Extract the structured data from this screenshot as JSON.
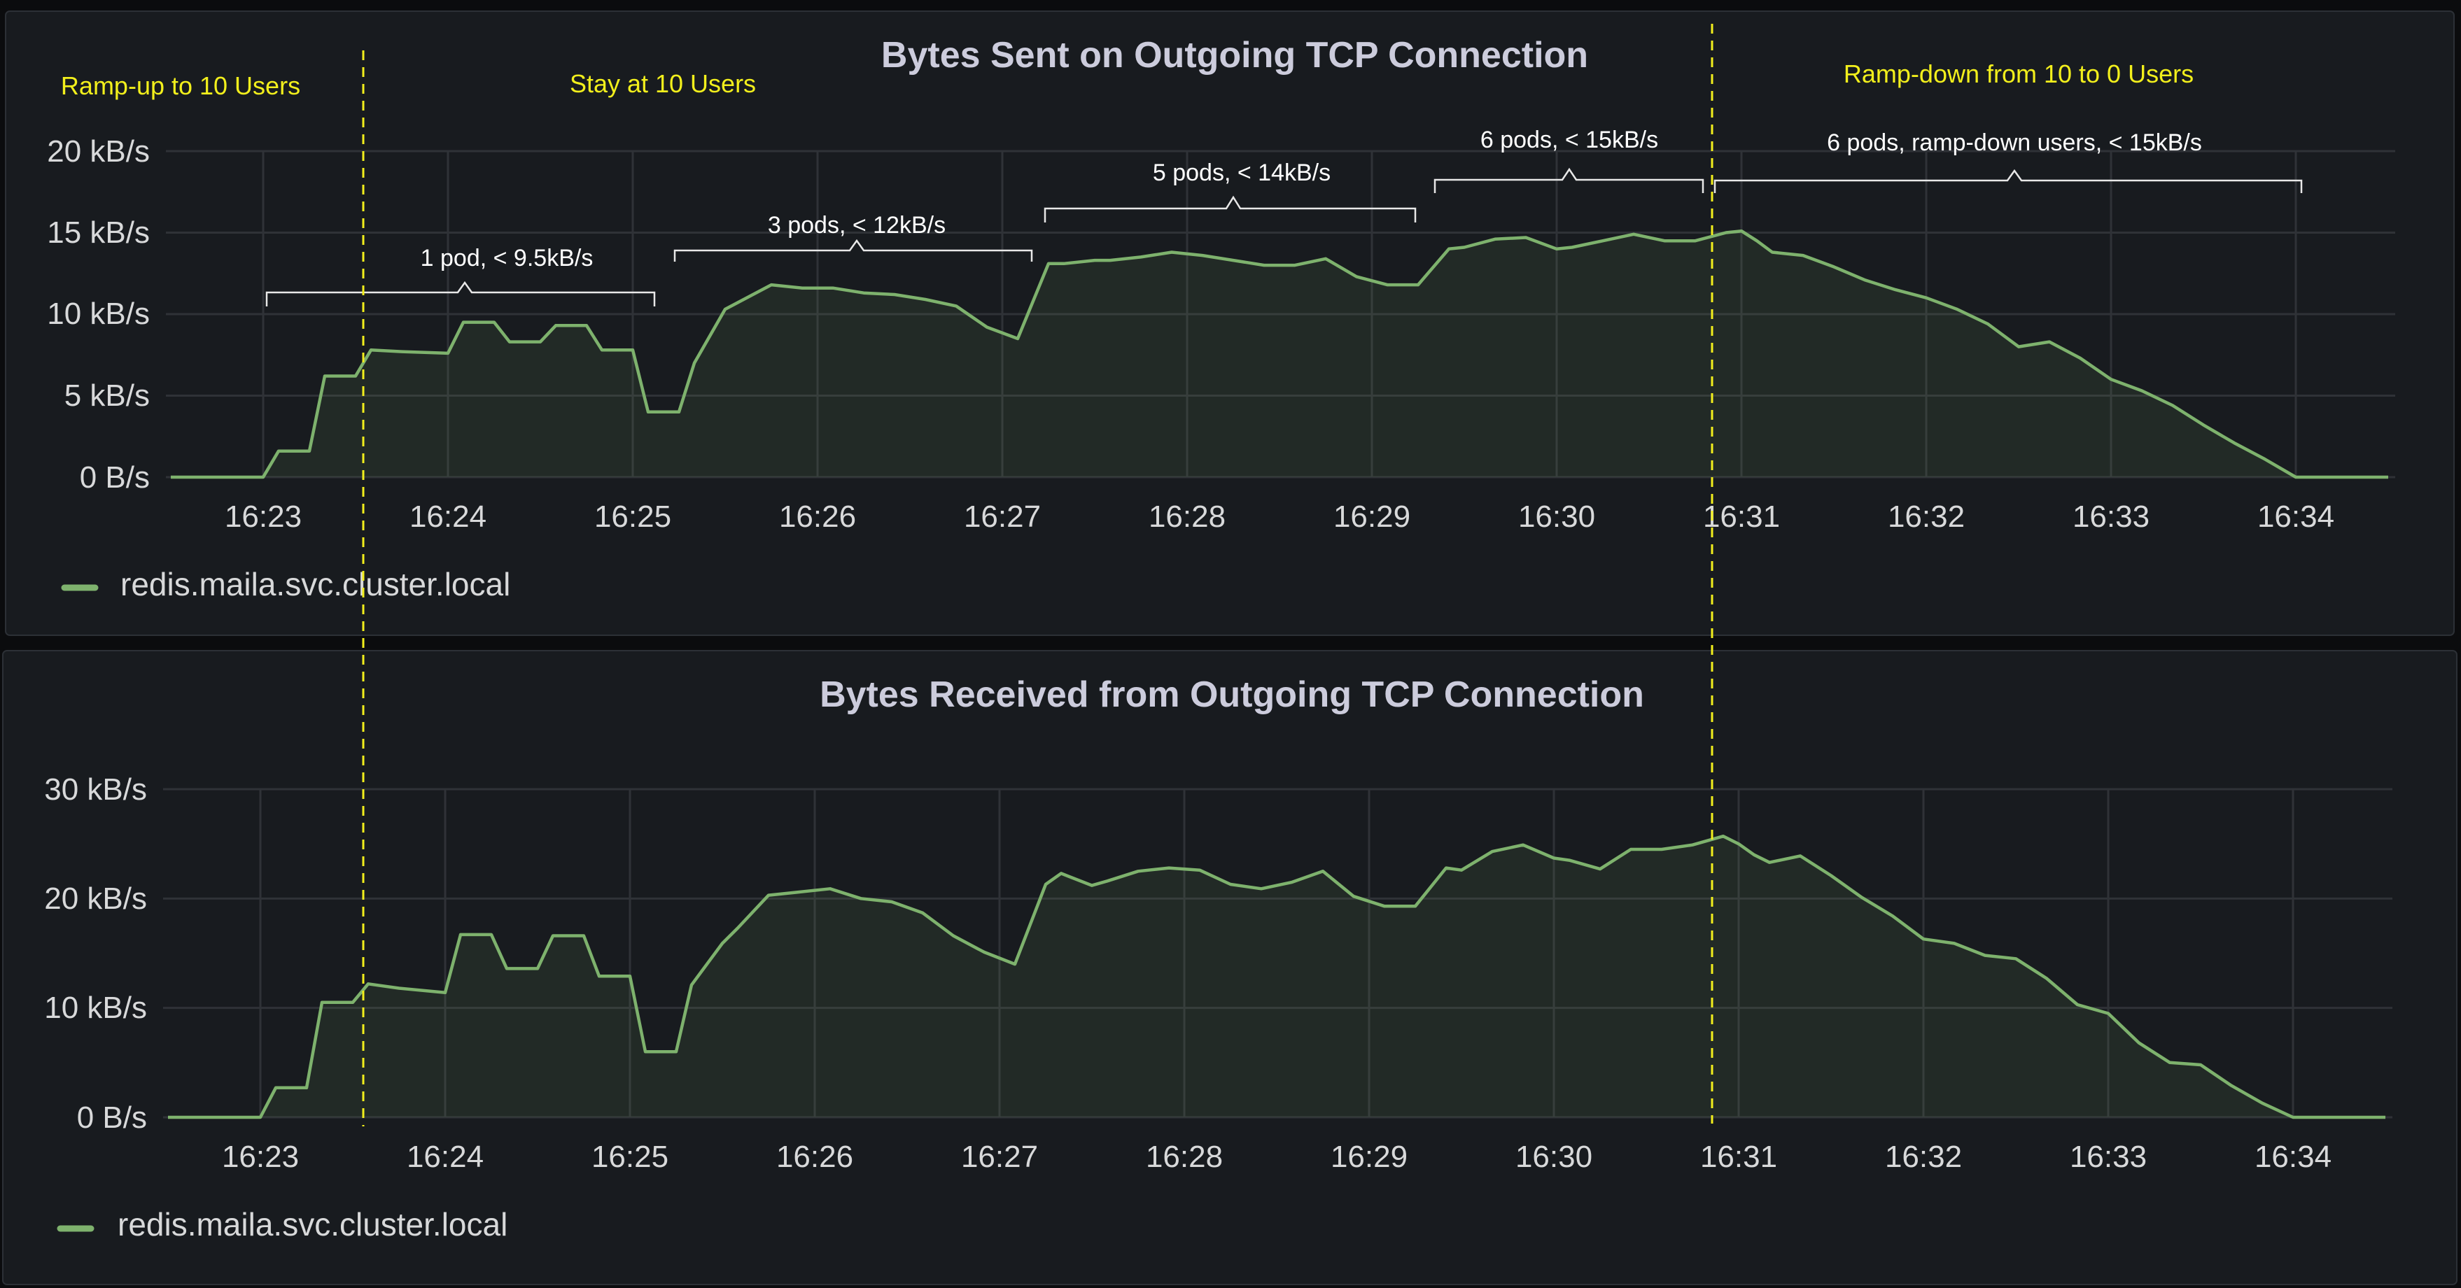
{
  "panels": [
    {
      "title": "Bytes Sent on Outgoing TCP Connection",
      "legend": "redis.maila.svc.cluster.local",
      "y_ticks": [
        "0 B/s",
        "5 kB/s",
        "10 kB/s",
        "15 kB/s",
        "20 kB/s"
      ]
    },
    {
      "title": "Bytes Received from Outgoing TCP Connection",
      "legend": "redis.maila.svc.cluster.local",
      "y_ticks": [
        "0 B/s",
        "10 kB/s",
        "20 kB/s",
        "30 kB/s"
      ]
    }
  ],
  "x_ticks": [
    "16:23",
    "16:24",
    "16:25",
    "16:26",
    "16:27",
    "16:28",
    "16:29",
    "16:30",
    "16:31",
    "16:32",
    "16:33",
    "16:34"
  ],
  "phases": [
    "Ramp-up to 10 Users",
    "Stay at 10 Users",
    "Ramp-down from 10 to 0 Users"
  ],
  "pod_annotations": [
    "1 pod, < 9.5kB/s",
    "3 pods, < 12kB/s",
    "5 pods, < 14kB/s",
    "6 pods, < 15kB/s",
    "6 pods, ramp-down users, < 15kB/s"
  ],
  "colors": {
    "series": "#7eb26d",
    "phase_marker": "#f2ef1c",
    "panel_bg": "#181b1f",
    "page_bg": "#0b0c0e"
  },
  "chart_data": [
    {
      "type": "area",
      "title": "Bytes Sent on Outgoing TCP Connection",
      "ylabel_unit": "kB/s",
      "ylim": [
        0,
        20
      ],
      "xlim": [
        "16:22:30",
        "16:34:30"
      ],
      "grid": true,
      "legend_position": "bottom-left",
      "series": [
        {
          "name": "redis.maila.svc.cluster.local",
          "x": [
            "16:22:30",
            "16:23:00",
            "16:23:05",
            "16:23:15",
            "16:23:20",
            "16:23:30",
            "16:23:35",
            "16:23:45",
            "16:24:00",
            "16:24:05",
            "16:24:15",
            "16:24:20",
            "16:24:30",
            "16:24:35",
            "16:24:45",
            "16:24:50",
            "16:25:00",
            "16:25:05",
            "16:25:15",
            "16:25:20",
            "16:25:30",
            "16:25:35",
            "16:25:45",
            "16:25:55",
            "16:26:05",
            "16:26:15",
            "16:26:25",
            "16:26:35",
            "16:26:45",
            "16:26:55",
            "16:27:05",
            "16:27:15",
            "16:27:20",
            "16:27:30",
            "16:27:35",
            "16:27:45",
            "16:27:55",
            "16:28:05",
            "16:28:15",
            "16:28:25",
            "16:28:35",
            "16:28:45",
            "16:28:55",
            "16:29:05",
            "16:29:15",
            "16:29:25",
            "16:29:30",
            "16:29:40",
            "16:29:50",
            "16:30:00",
            "16:30:05",
            "16:30:15",
            "16:30:25",
            "16:30:35",
            "16:30:45",
            "16:30:55",
            "16:31:00",
            "16:31:05",
            "16:31:10",
            "16:31:20",
            "16:31:30",
            "16:31:40",
            "16:31:50",
            "16:32:00",
            "16:32:10",
            "16:32:20",
            "16:32:30",
            "16:32:40",
            "16:32:50",
            "16:33:00",
            "16:33:10",
            "16:33:20",
            "16:33:30",
            "16:33:40",
            "16:33:50",
            "16:34:00",
            "16:34:30"
          ],
          "values": [
            0,
            0,
            1.6,
            1.6,
            6.2,
            6.2,
            7.8,
            7.7,
            7.6,
            9.5,
            9.5,
            8.3,
            8.3,
            9.3,
            9.3,
            7.8,
            7.8,
            4,
            4,
            7,
            10.3,
            10.8,
            11.8,
            11.6,
            11.6,
            11.3,
            11.2,
            10.9,
            10.5,
            9.2,
            8.5,
            13.1,
            13.1,
            13.3,
            13.3,
            13.5,
            13.8,
            13.6,
            13.3,
            13.0,
            13.0,
            13.4,
            12.3,
            11.8,
            11.8,
            14.0,
            14.1,
            14.6,
            14.7,
            14.0,
            14.1,
            14.5,
            14.9,
            14.5,
            14.5,
            15.0,
            15.1,
            14.5,
            13.8,
            13.6,
            12.9,
            12.1,
            11.5,
            11.0,
            10.3,
            9.4,
            8.0,
            8.3,
            7.3,
            6.0,
            5.3,
            4.4,
            3.2,
            2.1,
            1.1,
            0,
            0
          ]
        }
      ],
      "phase_markers_x": [
        "16:23:35",
        "16:30:50"
      ]
    },
    {
      "type": "area",
      "title": "Bytes Received from Outgoing TCP Connection",
      "ylabel_unit": "kB/s",
      "ylim": [
        0,
        30
      ],
      "xlim": [
        "16:22:30",
        "16:34:30"
      ],
      "grid": true,
      "legend_position": "bottom-left",
      "series": [
        {
          "name": "redis.maila.svc.cluster.local",
          "x": [
            "16:22:30",
            "16:23:00",
            "16:23:05",
            "16:23:15",
            "16:23:20",
            "16:23:30",
            "16:23:35",
            "16:23:45",
            "16:24:00",
            "16:24:05",
            "16:24:15",
            "16:24:20",
            "16:24:30",
            "16:24:35",
            "16:24:45",
            "16:24:50",
            "16:25:00",
            "16:25:05",
            "16:25:15",
            "16:25:20",
            "16:25:30",
            "16:25:35",
            "16:25:45",
            "16:25:55",
            "16:26:05",
            "16:26:15",
            "16:26:25",
            "16:26:35",
            "16:26:45",
            "16:26:55",
            "16:27:05",
            "16:27:15",
            "16:27:20",
            "16:27:30",
            "16:27:35",
            "16:27:45",
            "16:27:55",
            "16:28:05",
            "16:28:15",
            "16:28:25",
            "16:28:35",
            "16:28:45",
            "16:28:55",
            "16:29:05",
            "16:29:15",
            "16:29:25",
            "16:29:30",
            "16:29:40",
            "16:29:50",
            "16:30:00",
            "16:30:05",
            "16:30:15",
            "16:30:25",
            "16:30:35",
            "16:30:45",
            "16:30:55",
            "16:31:00",
            "16:31:05",
            "16:31:10",
            "16:31:20",
            "16:31:30",
            "16:31:40",
            "16:31:50",
            "16:32:00",
            "16:32:10",
            "16:32:20",
            "16:32:30",
            "16:32:40",
            "16:32:50",
            "16:33:00",
            "16:33:10",
            "16:33:20",
            "16:33:30",
            "16:33:40",
            "16:33:50",
            "16:34:00",
            "16:34:30"
          ],
          "values": [
            0,
            0,
            2.7,
            2.7,
            10.5,
            10.5,
            12.2,
            11.8,
            11.4,
            16.7,
            16.7,
            13.6,
            13.6,
            16.6,
            16.6,
            12.9,
            12.9,
            6.0,
            6.0,
            12.1,
            15.9,
            17.3,
            20.3,
            20.6,
            20.9,
            20.0,
            19.7,
            18.7,
            16.6,
            15.1,
            14.0,
            21.3,
            22.3,
            21.2,
            21.6,
            22.5,
            22.8,
            22.6,
            21.3,
            20.9,
            21.5,
            22.5,
            20.2,
            19.3,
            19.3,
            22.8,
            22.6,
            24.3,
            24.9,
            23.7,
            23.5,
            22.7,
            24.5,
            24.5,
            24.9,
            25.7,
            25.0,
            24.0,
            23.3,
            23.9,
            22.1,
            20.1,
            18.4,
            16.3,
            15.9,
            14.8,
            14.5,
            12.7,
            10.3,
            9.5,
            6.8,
            5.0,
            4.8,
            2.9,
            1.3,
            0,
            0
          ]
        }
      ],
      "phase_markers_x": [
        "16:23:35",
        "16:30:50"
      ]
    }
  ]
}
